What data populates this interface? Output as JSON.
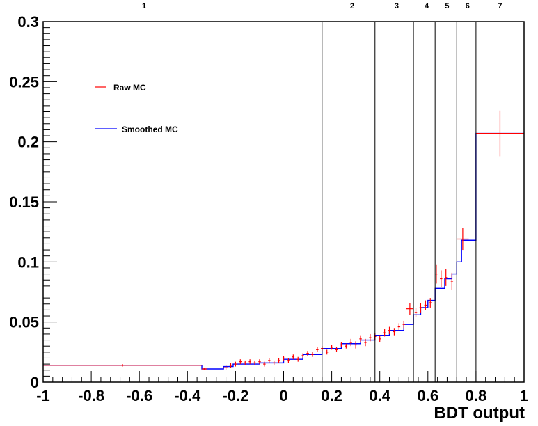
{
  "chart_data": {
    "type": "line",
    "xlabel": "BDT output",
    "ylabel": "",
    "xlim": [
      -1,
      1
    ],
    "ylim": [
      0,
      0.3
    ],
    "grid": false,
    "legend_placement": "top-left",
    "x_ticks": [
      "-1",
      "-0.8",
      "-0.6",
      "-0.4",
      "-0.2",
      "0",
      "0.2",
      "0.4",
      "0.6",
      "0.8",
      "1"
    ],
    "y_ticks": [
      "0",
      "0.05",
      "0.1",
      "0.15",
      "0.2",
      "0.25",
      "0.3"
    ],
    "region_boundaries": [
      0.16,
      0.38,
      0.54,
      0.63,
      0.72,
      0.8
    ],
    "region_labels": [
      {
        "label": "1",
        "x": -0.58
      },
      {
        "label": "2",
        "x": 0.285
      },
      {
        "label": "3",
        "x": 0.47
      },
      {
        "label": "4",
        "x": 0.595
      },
      {
        "label": "5",
        "x": 0.68
      },
      {
        "label": "6",
        "x": 0.765
      },
      {
        "label": "7",
        "x": 0.9
      }
    ],
    "series": [
      {
        "name": "Raw MC",
        "color": "#ff0000",
        "style": "points-with-errors",
        "points": [
          {
            "x": -0.67,
            "y": 0.014,
            "xerr": 0.33,
            "yerr": 0.001
          },
          {
            "x": -0.33,
            "y": 0.011,
            "xerr": 0.01,
            "yerr": 0.001
          },
          {
            "x": -0.24,
            "y": 0.012,
            "xerr": 0.01,
            "yerr": 0.002
          },
          {
            "x": -0.22,
            "y": 0.014,
            "xerr": 0.005,
            "yerr": 0.002
          },
          {
            "x": -0.2,
            "y": 0.015,
            "xerr": 0.005,
            "yerr": 0.002
          },
          {
            "x": -0.18,
            "y": 0.017,
            "xerr": 0.005,
            "yerr": 0.002
          },
          {
            "x": -0.16,
            "y": 0.016,
            "xerr": 0.005,
            "yerr": 0.002
          },
          {
            "x": -0.14,
            "y": 0.017,
            "xerr": 0.005,
            "yerr": 0.002
          },
          {
            "x": -0.12,
            "y": 0.016,
            "xerr": 0.005,
            "yerr": 0.002
          },
          {
            "x": -0.1,
            "y": 0.017,
            "xerr": 0.005,
            "yerr": 0.002
          },
          {
            "x": -0.08,
            "y": 0.015,
            "xerr": 0.005,
            "yerr": 0.002
          },
          {
            "x": -0.06,
            "y": 0.018,
            "xerr": 0.005,
            "yerr": 0.002
          },
          {
            "x": -0.04,
            "y": 0.016,
            "xerr": 0.005,
            "yerr": 0.002
          },
          {
            "x": -0.02,
            "y": 0.018,
            "xerr": 0.005,
            "yerr": 0.002
          },
          {
            "x": 0.0,
            "y": 0.02,
            "xerr": 0.005,
            "yerr": 0.002
          },
          {
            "x": 0.02,
            "y": 0.018,
            "xerr": 0.005,
            "yerr": 0.002
          },
          {
            "x": 0.04,
            "y": 0.021,
            "xerr": 0.005,
            "yerr": 0.002
          },
          {
            "x": 0.06,
            "y": 0.019,
            "xerr": 0.005,
            "yerr": 0.002
          },
          {
            "x": 0.08,
            "y": 0.022,
            "xerr": 0.005,
            "yerr": 0.002
          },
          {
            "x": 0.1,
            "y": 0.024,
            "xerr": 0.005,
            "yerr": 0.002
          },
          {
            "x": 0.12,
            "y": 0.023,
            "xerr": 0.005,
            "yerr": 0.002
          },
          {
            "x": 0.14,
            "y": 0.027,
            "xerr": 0.005,
            "yerr": 0.002
          },
          {
            "x": 0.16,
            "y": 0.028,
            "xerr": 0.005,
            "yerr": 0.002
          },
          {
            "x": 0.18,
            "y": 0.025,
            "xerr": 0.005,
            "yerr": 0.002
          },
          {
            "x": 0.2,
            "y": 0.029,
            "xerr": 0.005,
            "yerr": 0.002
          },
          {
            "x": 0.22,
            "y": 0.027,
            "xerr": 0.005,
            "yerr": 0.002
          },
          {
            "x": 0.24,
            "y": 0.031,
            "xerr": 0.005,
            "yerr": 0.002
          },
          {
            "x": 0.26,
            "y": 0.03,
            "xerr": 0.005,
            "yerr": 0.002
          },
          {
            "x": 0.28,
            "y": 0.033,
            "xerr": 0.005,
            "yerr": 0.003
          },
          {
            "x": 0.3,
            "y": 0.031,
            "xerr": 0.005,
            "yerr": 0.003
          },
          {
            "x": 0.32,
            "y": 0.036,
            "xerr": 0.005,
            "yerr": 0.003
          },
          {
            "x": 0.34,
            "y": 0.033,
            "xerr": 0.005,
            "yerr": 0.003
          },
          {
            "x": 0.36,
            "y": 0.037,
            "xerr": 0.005,
            "yerr": 0.003
          },
          {
            "x": 0.38,
            "y": 0.038,
            "xerr": 0.005,
            "yerr": 0.003
          },
          {
            "x": 0.4,
            "y": 0.036,
            "xerr": 0.005,
            "yerr": 0.003
          },
          {
            "x": 0.42,
            "y": 0.041,
            "xerr": 0.005,
            "yerr": 0.003
          },
          {
            "x": 0.44,
            "y": 0.043,
            "xerr": 0.005,
            "yerr": 0.003
          },
          {
            "x": 0.46,
            "y": 0.042,
            "xerr": 0.005,
            "yerr": 0.003
          },
          {
            "x": 0.48,
            "y": 0.046,
            "xerr": 0.005,
            "yerr": 0.003
          },
          {
            "x": 0.5,
            "y": 0.048,
            "xerr": 0.005,
            "yerr": 0.003
          },
          {
            "x": 0.525,
            "y": 0.061,
            "xerr": 0.015,
            "yerr": 0.005
          },
          {
            "x": 0.55,
            "y": 0.058,
            "xerr": 0.005,
            "yerr": 0.004
          },
          {
            "x": 0.57,
            "y": 0.062,
            "xerr": 0.005,
            "yerr": 0.004
          },
          {
            "x": 0.59,
            "y": 0.064,
            "xerr": 0.005,
            "yerr": 0.004
          },
          {
            "x": 0.61,
            "y": 0.066,
            "xerr": 0.005,
            "yerr": 0.004
          },
          {
            "x": 0.635,
            "y": 0.09,
            "xerr": 0.005,
            "yerr": 0.008
          },
          {
            "x": 0.655,
            "y": 0.086,
            "xerr": 0.005,
            "yerr": 0.007
          },
          {
            "x": 0.675,
            "y": 0.087,
            "xerr": 0.005,
            "yerr": 0.007
          },
          {
            "x": 0.7,
            "y": 0.084,
            "xerr": 0.005,
            "yerr": 0.007
          },
          {
            "x": 0.745,
            "y": 0.119,
            "xerr": 0.025,
            "yerr": 0.009
          },
          {
            "x": 0.9,
            "y": 0.207,
            "xerr": 0.1,
            "yerr": 0.019
          }
        ]
      },
      {
        "name": "Smoothed MC",
        "color": "#0000ff",
        "style": "step",
        "steps": [
          {
            "x0": -1.0,
            "x1": -0.34,
            "y": 0.014
          },
          {
            "x0": -0.34,
            "x1": -0.25,
            "y": 0.011
          },
          {
            "x0": -0.25,
            "x1": -0.21,
            "y": 0.013
          },
          {
            "x0": -0.21,
            "x1": -0.1,
            "y": 0.015
          },
          {
            "x0": -0.1,
            "x1": 0.0,
            "y": 0.016
          },
          {
            "x0": 0.0,
            "x1": 0.08,
            "y": 0.019
          },
          {
            "x0": 0.08,
            "x1": 0.16,
            "y": 0.023
          },
          {
            "x0": 0.16,
            "x1": 0.24,
            "y": 0.028
          },
          {
            "x0": 0.24,
            "x1": 0.32,
            "y": 0.032
          },
          {
            "x0": 0.32,
            "x1": 0.38,
            "y": 0.035
          },
          {
            "x0": 0.38,
            "x1": 0.44,
            "y": 0.039
          },
          {
            "x0": 0.44,
            "x1": 0.5,
            "y": 0.043
          },
          {
            "x0": 0.5,
            "x1": 0.54,
            "y": 0.048
          },
          {
            "x0": 0.54,
            "x1": 0.57,
            "y": 0.056
          },
          {
            "x0": 0.57,
            "x1": 0.6,
            "y": 0.062
          },
          {
            "x0": 0.6,
            "x1": 0.63,
            "y": 0.068
          },
          {
            "x0": 0.63,
            "x1": 0.67,
            "y": 0.078
          },
          {
            "x0": 0.67,
            "x1": 0.7,
            "y": 0.086
          },
          {
            "x0": 0.7,
            "x1": 0.72,
            "y": 0.09
          },
          {
            "x0": 0.72,
            "x1": 0.74,
            "y": 0.1
          },
          {
            "x0": 0.74,
            "x1": 0.8,
            "y": 0.118
          },
          {
            "x0": 0.8,
            "x1": 1.0,
            "y": 0.207
          }
        ]
      }
    ]
  }
}
